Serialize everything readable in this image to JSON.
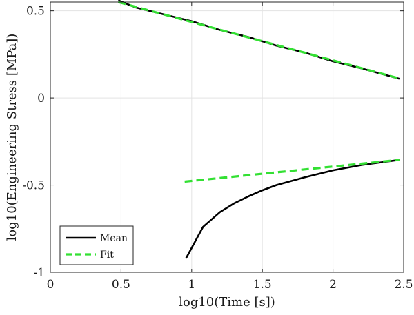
{
  "chart_data": {
    "type": "line",
    "xlabel": "log10(Time [s])",
    "ylabel": "log10(Engineering Stress [MPa])",
    "xlim": [
      0,
      2.5
    ],
    "ylim": [
      -1,
      0.55
    ],
    "grid": true,
    "legend_position": "bottom-left",
    "x_ticks": [
      0,
      0.5,
      1,
      1.5,
      2,
      2.5
    ],
    "x_tick_labels": [
      "0",
      "0.5",
      "1",
      "1.5",
      "2",
      "2.5"
    ],
    "y_ticks": [
      -1,
      -0.5,
      0,
      0.5
    ],
    "y_tick_labels": [
      "-1",
      "-0.5",
      "0",
      "0.5"
    ],
    "series": [
      {
        "name": "Mean",
        "color": "#000000",
        "style": "solid",
        "segments": [
          [
            [
              0.48,
              0.56
            ],
            [
              0.6,
              0.52
            ],
            [
              0.8,
              0.48
            ],
            [
              1.0,
              0.44
            ],
            [
              1.2,
              0.39
            ],
            [
              1.4,
              0.35
            ],
            [
              1.6,
              0.3
            ],
            [
              1.8,
              0.26
            ],
            [
              2.0,
              0.21
            ],
            [
              2.2,
              0.17
            ],
            [
              2.47,
              0.11
            ]
          ],
          [
            [
              0.96,
              -0.92
            ],
            [
              1.02,
              -0.83
            ],
            [
              1.08,
              -0.74
            ],
            [
              1.2,
              -0.655
            ],
            [
              1.3,
              -0.605
            ],
            [
              1.4,
              -0.565
            ],
            [
              1.5,
              -0.53
            ],
            [
              1.6,
              -0.5
            ],
            [
              1.8,
              -0.455
            ],
            [
              2.0,
              -0.415
            ],
            [
              2.2,
              -0.385
            ],
            [
              2.47,
              -0.355
            ]
          ]
        ]
      },
      {
        "name": "Fit",
        "color": "#33e033",
        "style": "dashed",
        "segments": [
          [
            [
              0.48,
              0.55
            ],
            [
              2.48,
              0.11
            ]
          ],
          [
            [
              0.95,
              -0.48
            ],
            [
              2.47,
              -0.355
            ]
          ]
        ]
      }
    ]
  }
}
